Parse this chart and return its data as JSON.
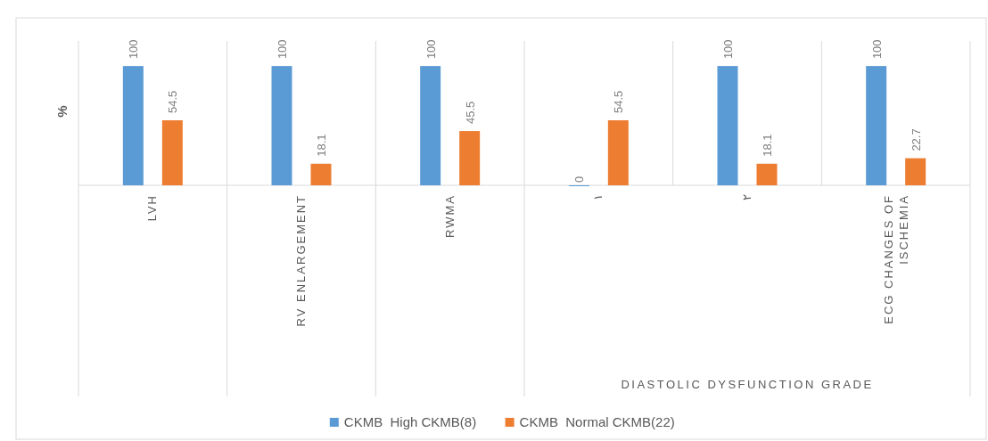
{
  "chart_data": {
    "type": "bar",
    "categories": [
      "LVH",
      "RV ENLARGEMENT",
      "RWMA",
      "١",
      "٢",
      "ECG CHANGES OF ISCHEMIA"
    ],
    "xlabel": "DIASTOLIC DYSFUNCTION GRADE",
    "ylabel": "%",
    "series": [
      {
        "name": "CKMB  High CKMB(8)",
        "color": "#5b9bd5",
        "values": [
          100,
          100,
          100,
          0,
          100,
          100
        ]
      },
      {
        "name": "CKMB  Normal CKMB(22)",
        "color": "#ed7d31",
        "values": [
          54.5,
          18.1,
          45.5,
          54.5,
          18.1,
          22.7
        ]
      }
    ],
    "data_labels": true,
    "legend": "bottom",
    "grid": "x"
  }
}
